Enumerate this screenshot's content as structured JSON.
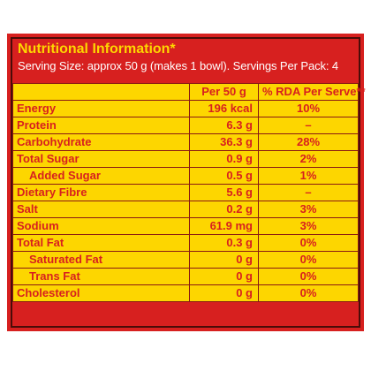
{
  "label": {
    "title": "Nutritional Information*",
    "serving": "Serving Size: approx 50 g (makes 1 bowl). Servings Per Pack: 4",
    "columns": [
      "",
      "Per 50 g",
      "% RDA Per Serve**"
    ],
    "rows": [
      {
        "name": "Energy",
        "per": "196 kcal",
        "rda": "10%"
      },
      {
        "name": "Protein",
        "per": "6.3 g",
        "rda": "–"
      },
      {
        "name": "Carbohydrate",
        "per": "36.3 g",
        "rda": "28%"
      },
      {
        "name": "Total Sugar",
        "per": "0.9 g",
        "rda": "2%"
      },
      {
        "name": "Added Sugar",
        "per": "0.5 g",
        "rda": "1%"
      },
      {
        "name": "Dietary Fibre",
        "per": "5.6 g",
        "rda": "–"
      },
      {
        "name": "Salt",
        "per": "0.2 g",
        "rda": "3%"
      },
      {
        "name": "Sodium",
        "per": "61.9 mg",
        "rda": "3%"
      },
      {
        "name": "Total Fat",
        "per": "0.3 g",
        "rda": "0%"
      },
      {
        "name": "Saturated Fat",
        "per": "0 g",
        "rda": "0%"
      },
      {
        "name": "Trans Fat",
        "per": "0 g",
        "rda": "0%"
      },
      {
        "name": "Cholesterol",
        "per": "0 g",
        "rda": "0%"
      }
    ]
  },
  "colors": {
    "panel_red": "#d7201f",
    "table_yellow": "#fdd600",
    "text_red": "#d7201f",
    "title_yellow": "#fdd600"
  }
}
